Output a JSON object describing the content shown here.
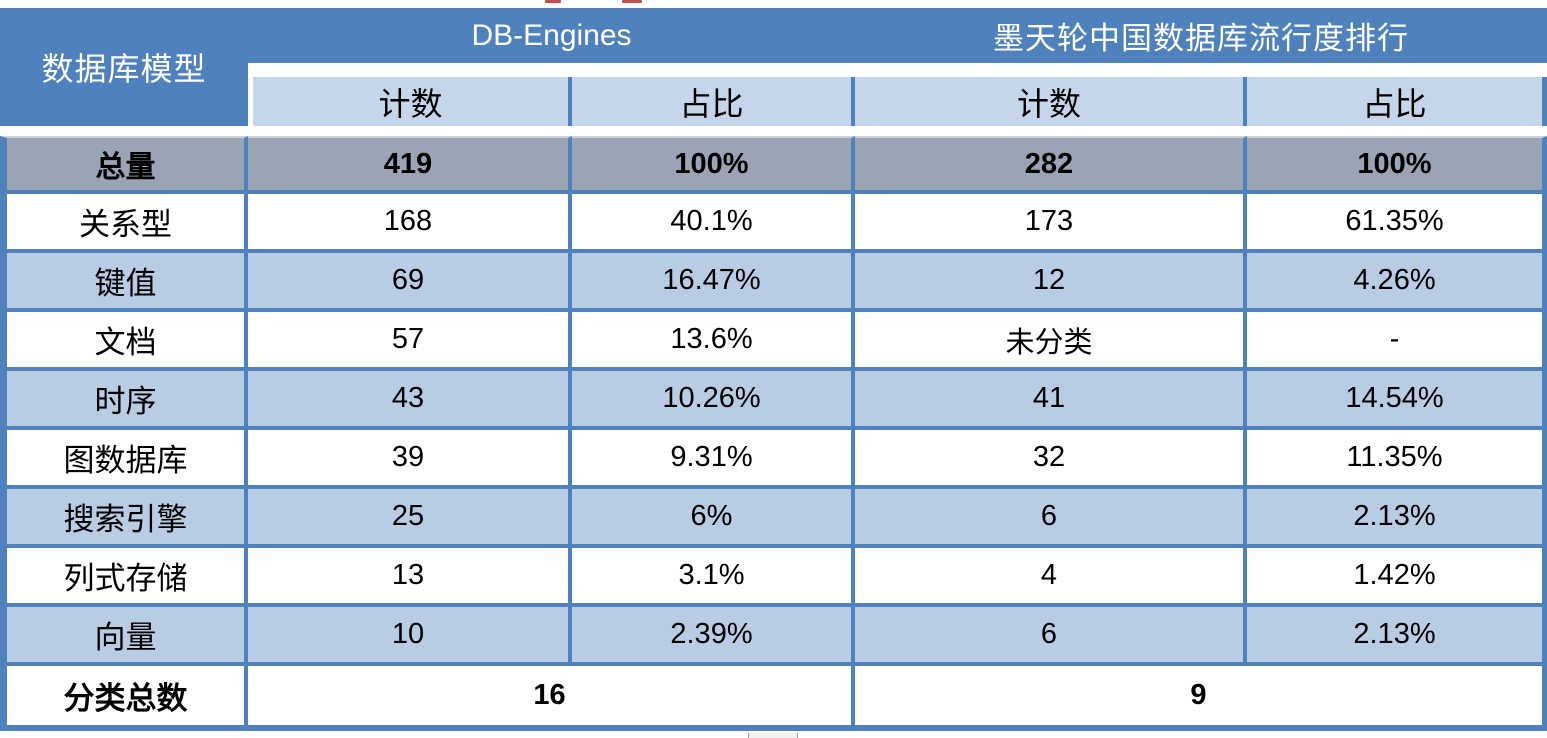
{
  "table": {
    "corner_header": "数据库模型",
    "group_headers": [
      {
        "label": "DB-Engines"
      },
      {
        "label": "墨天轮中国数据库流行度排行"
      }
    ],
    "sub_headers": [
      "计数",
      "占比",
      "计数",
      "占比"
    ],
    "total_row": {
      "label": "总量",
      "cells": [
        "419",
        "100%",
        "282",
        "100%"
      ]
    },
    "rows": [
      {
        "label": "关系型",
        "cells": [
          "168",
          "40.1%",
          "173",
          "61.35%"
        ]
      },
      {
        "label": "键值",
        "cells": [
          "69",
          "16.47%",
          "12",
          "4.26%"
        ]
      },
      {
        "label": "文档",
        "cells": [
          "57",
          "13.6%",
          "未分类",
          "-"
        ]
      },
      {
        "label": "时序",
        "cells": [
          "43",
          "10.26%",
          "41",
          "14.54%"
        ]
      },
      {
        "label": "图数据库",
        "cells": [
          "39",
          "9.31%",
          "32",
          "11.35%"
        ]
      },
      {
        "label": "搜索引擎",
        "cells": [
          "25",
          "6%",
          "6",
          "2.13%"
        ]
      },
      {
        "label": "列式存储",
        "cells": [
          "13",
          "3.1%",
          "4",
          "1.42%"
        ]
      },
      {
        "label": "向量",
        "cells": [
          "10",
          "2.39%",
          "6",
          "2.13%"
        ]
      }
    ],
    "footer_row": {
      "label": "分类总数",
      "cells": [
        "16",
        "9"
      ]
    }
  },
  "colors": {
    "header_blue": "#4f81bd",
    "subheader_blue": "#c5d5ea",
    "stripe_blue": "#b8cce4",
    "total_gray": "#9aa4b5",
    "border_blue": "#4f81bd",
    "artifact_red": "#c0504d"
  }
}
